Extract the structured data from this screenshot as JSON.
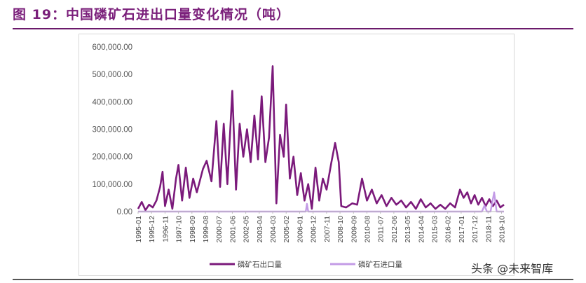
{
  "title": "图 19：中国磷矿石进出口量变化情况（吨）",
  "watermark": "头条 @未来智库",
  "chart_data": {
    "type": "line",
    "ylim": [
      0,
      600000
    ],
    "y_ticks": [
      "600,000.00",
      "500,000.00",
      "400,000.00",
      "300,000.00",
      "200,000.00",
      "100,000.00",
      "0.00"
    ],
    "y_tick_values": [
      600000,
      500000,
      400000,
      300000,
      200000,
      100000,
      0
    ],
    "x_ticks": [
      "1995-01",
      "1995-12",
      "1996-11",
      "1997-10",
      "1998-09",
      "1999-08",
      "2000-07",
      "2001-06",
      "2002-05",
      "2003-04",
      "2004-03",
      "2005-02",
      "2006-01",
      "2006-12",
      "2007-11",
      "2008-10",
      "2009-09",
      "2010-08",
      "2011-07",
      "2012-06",
      "2013-05",
      "2014-04",
      "2015-03",
      "2016-02",
      "2017-01",
      "2017-12",
      "2018-11",
      "2019-10"
    ],
    "x_start": "1995-01",
    "x_end": "2019-12",
    "grid": false,
    "legend_position": "bottom",
    "series": [
      {
        "name": "磷矿石出口量",
        "color": "#7b1a7b",
        "points": [
          [
            "1995-01",
            10000
          ],
          [
            "1995-04",
            35000
          ],
          [
            "1995-07",
            5000
          ],
          [
            "1995-10",
            25000
          ],
          [
            "1996-01",
            15000
          ],
          [
            "1996-04",
            40000
          ],
          [
            "1996-07",
            90000
          ],
          [
            "1996-09",
            145000
          ],
          [
            "1996-11",
            20000
          ],
          [
            "1997-02",
            80000
          ],
          [
            "1997-05",
            10000
          ],
          [
            "1997-08",
            120000
          ],
          [
            "1997-10",
            170000
          ],
          [
            "1998-01",
            40000
          ],
          [
            "1998-04",
            160000
          ],
          [
            "1998-07",
            50000
          ],
          [
            "1998-10",
            120000
          ],
          [
            "1999-01",
            70000
          ],
          [
            "1999-06",
            155000
          ],
          [
            "1999-09",
            185000
          ],
          [
            "2000-01",
            110000
          ],
          [
            "2000-05",
            330000
          ],
          [
            "2000-08",
            90000
          ],
          [
            "2000-11",
            320000
          ],
          [
            "2001-02",
            100000
          ],
          [
            "2001-06",
            440000
          ],
          [
            "2001-09",
            80000
          ],
          [
            "2001-12",
            320000
          ],
          [
            "2002-03",
            200000
          ],
          [
            "2002-06",
            300000
          ],
          [
            "2002-09",
            180000
          ],
          [
            "2002-12",
            350000
          ],
          [
            "2003-03",
            190000
          ],
          [
            "2003-06",
            420000
          ],
          [
            "2003-09",
            180000
          ],
          [
            "2003-12",
            270000
          ],
          [
            "2004-03",
            530000
          ],
          [
            "2004-06",
            30000
          ],
          [
            "2004-09",
            280000
          ],
          [
            "2004-12",
            200000
          ],
          [
            "2005-02",
            390000
          ],
          [
            "2005-05",
            120000
          ],
          [
            "2005-08",
            200000
          ],
          [
            "2005-11",
            60000
          ],
          [
            "2006-02",
            140000
          ],
          [
            "2006-05",
            40000
          ],
          [
            "2006-08",
            100000
          ],
          [
            "2006-11",
            10000
          ],
          [
            "2007-02",
            160000
          ],
          [
            "2007-05",
            40000
          ],
          [
            "2007-08",
            120000
          ],
          [
            "2007-11",
            80000
          ],
          [
            "2008-03",
            180000
          ],
          [
            "2008-06",
            250000
          ],
          [
            "2008-09",
            180000
          ],
          [
            "2008-11",
            20000
          ],
          [
            "2009-03",
            15000
          ],
          [
            "2009-08",
            30000
          ],
          [
            "2009-12",
            25000
          ],
          [
            "2010-04",
            120000
          ],
          [
            "2010-08",
            40000
          ],
          [
            "2010-12",
            80000
          ],
          [
            "2011-04",
            30000
          ],
          [
            "2011-08",
            60000
          ],
          [
            "2011-12",
            20000
          ],
          [
            "2012-04",
            50000
          ],
          [
            "2012-08",
            25000
          ],
          [
            "2012-12",
            40000
          ],
          [
            "2013-04",
            15000
          ],
          [
            "2013-08",
            35000
          ],
          [
            "2013-12",
            10000
          ],
          [
            "2014-04",
            45000
          ],
          [
            "2014-08",
            15000
          ],
          [
            "2014-12",
            30000
          ],
          [
            "2015-04",
            10000
          ],
          [
            "2015-08",
            25000
          ],
          [
            "2015-12",
            10000
          ],
          [
            "2016-04",
            30000
          ],
          [
            "2016-08",
            15000
          ],
          [
            "2016-12",
            80000
          ],
          [
            "2017-03",
            50000
          ],
          [
            "2017-06",
            70000
          ],
          [
            "2017-09",
            30000
          ],
          [
            "2017-12",
            60000
          ],
          [
            "2018-03",
            25000
          ],
          [
            "2018-06",
            50000
          ],
          [
            "2018-09",
            20000
          ],
          [
            "2018-12",
            45000
          ],
          [
            "2019-03",
            20000
          ],
          [
            "2019-06",
            40000
          ],
          [
            "2019-09",
            15000
          ],
          [
            "2019-12",
            25000
          ]
        ]
      },
      {
        "name": "磷矿石进口量",
        "color": "#c39be6",
        "points": [
          [
            "1995-01",
            0
          ],
          [
            "2006-06",
            0
          ],
          [
            "2006-07",
            28000
          ],
          [
            "2006-08",
            0
          ],
          [
            "2018-06",
            0
          ],
          [
            "2018-08",
            22000
          ],
          [
            "2018-10",
            0
          ],
          [
            "2019-01",
            0
          ],
          [
            "2019-04",
            70000
          ],
          [
            "2019-06",
            0
          ],
          [
            "2019-12",
            0
          ]
        ]
      }
    ]
  }
}
